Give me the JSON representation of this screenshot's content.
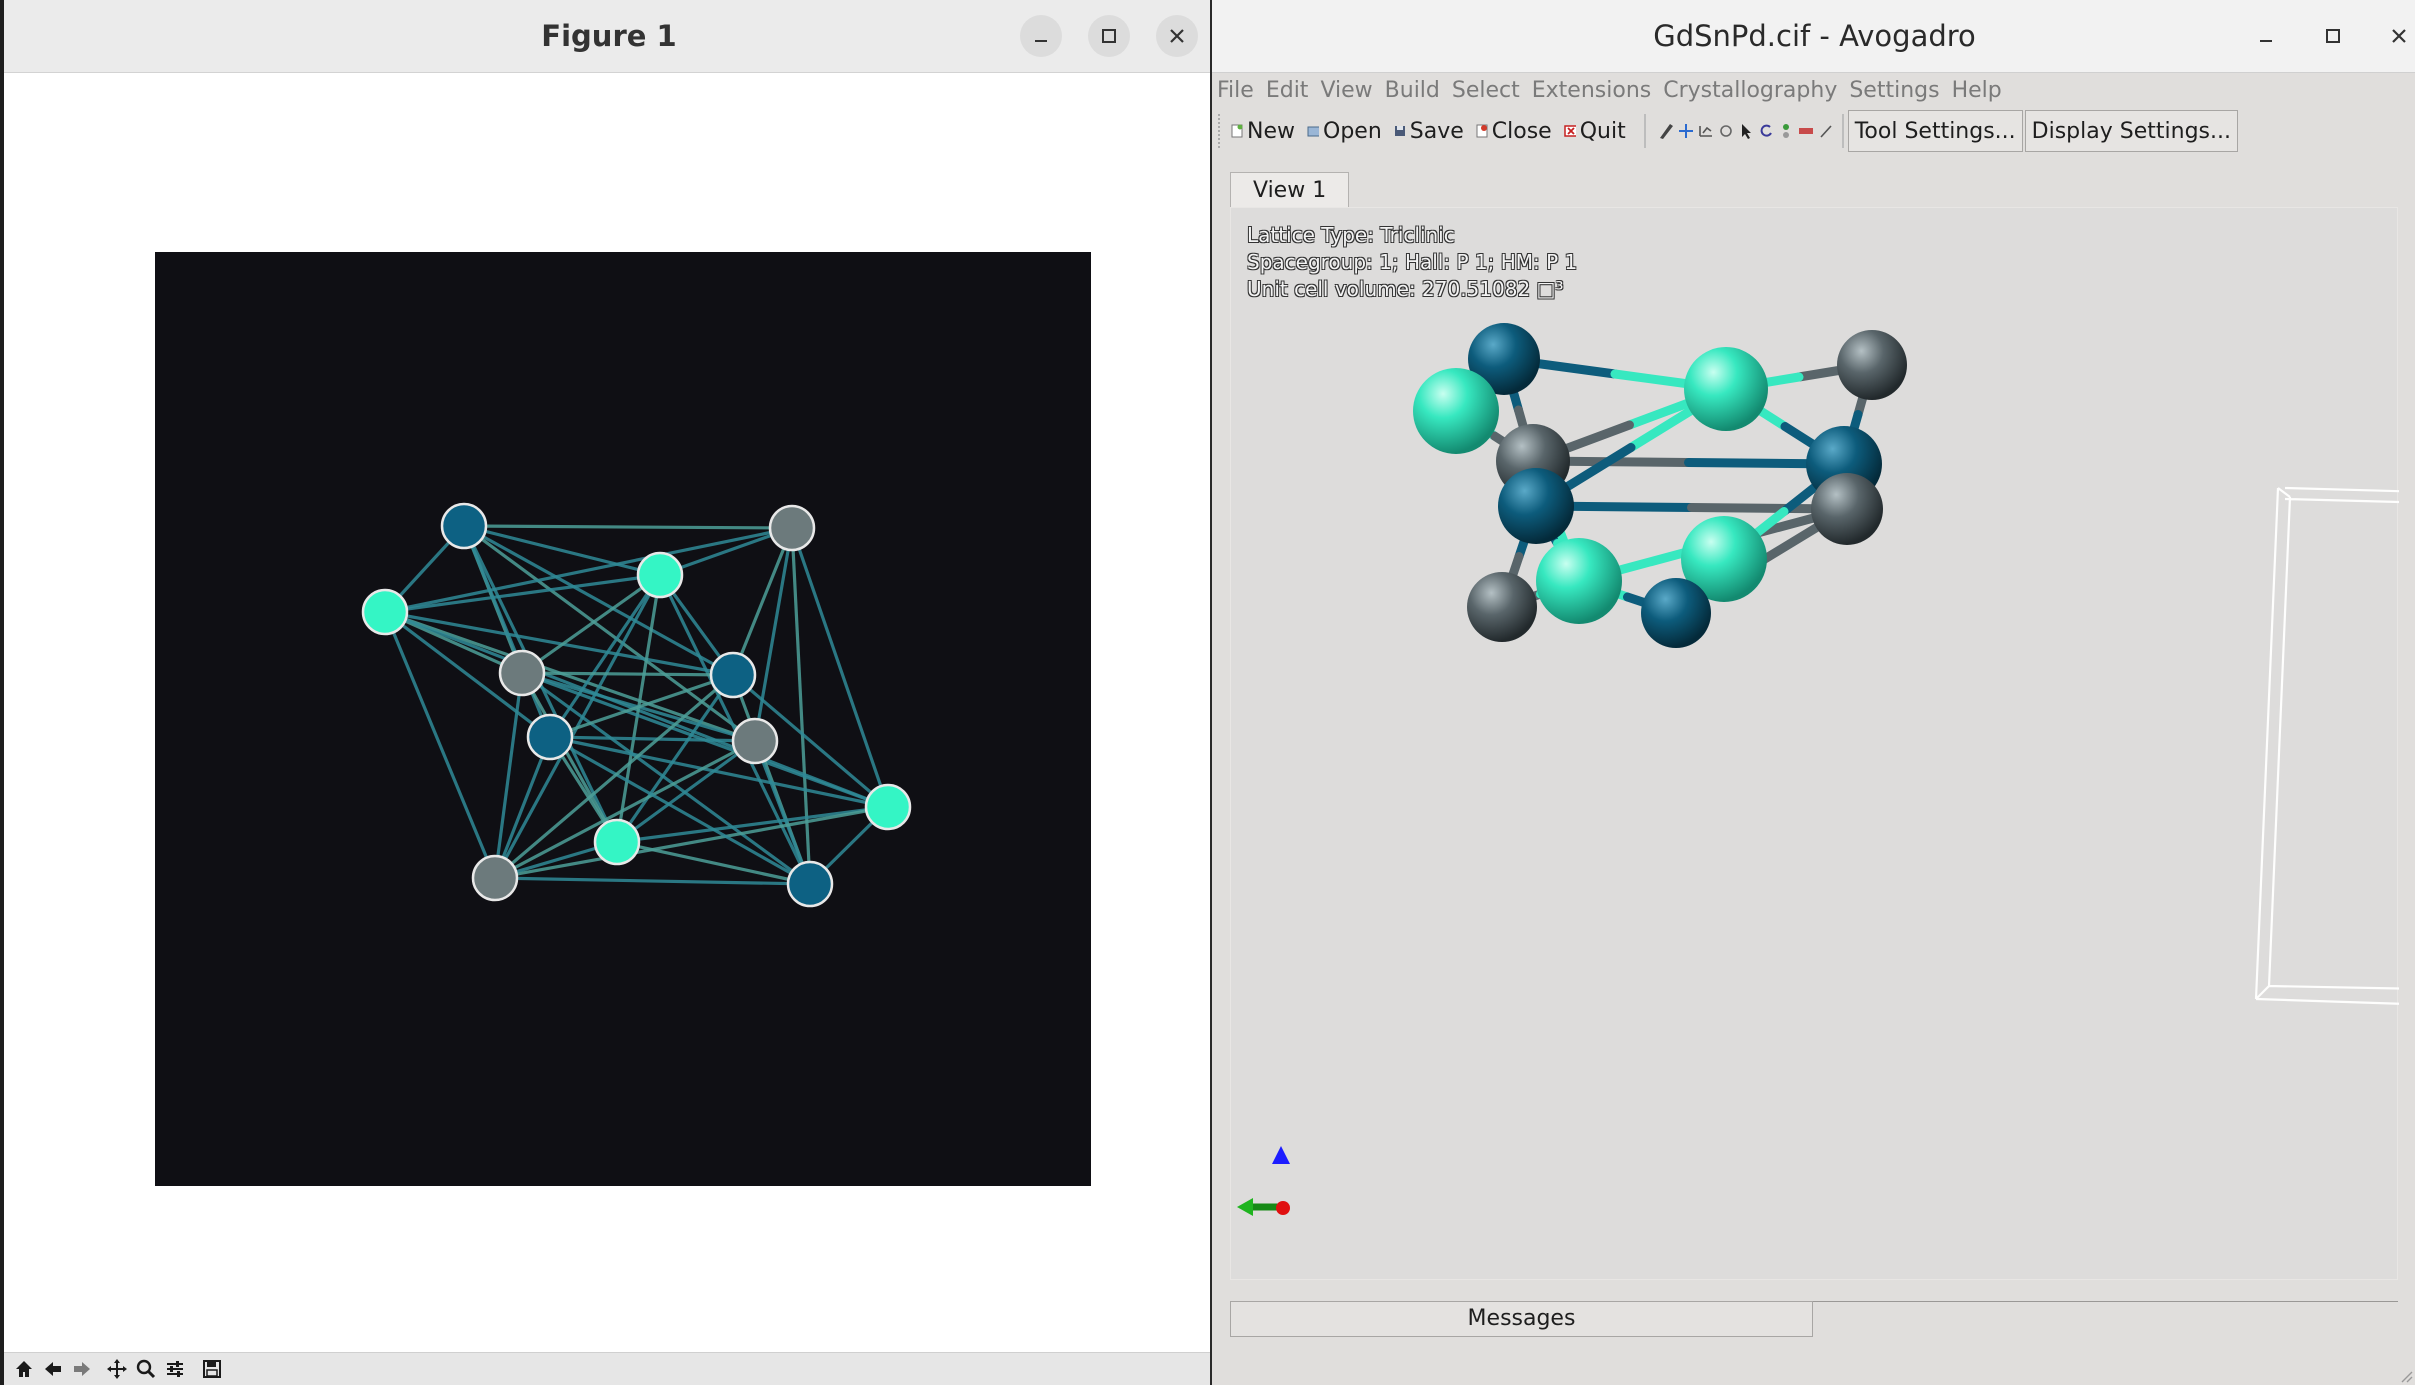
{
  "figure_window": {
    "title": "Figure 1",
    "toolbar_icons": [
      "home-icon",
      "back-icon",
      "forward-icon",
      "pan-icon",
      "zoom-icon",
      "configure-icon",
      "save-icon"
    ],
    "canvas_background": "#0f0f14",
    "node_colors": {
      "teal_dark": "#0d6183",
      "aqua": "#34f5c5",
      "gray": "#6c7a7c"
    },
    "edge_color": "#2f8a96"
  },
  "avogadro_window": {
    "title": "GdSnPd.cif - Avogadro",
    "menu": [
      "File",
      "Edit",
      "View",
      "Build",
      "Select",
      "Extensions",
      "Crystallography",
      "Settings",
      "Help"
    ],
    "toolbar": {
      "new_label": "New",
      "open_label": "Open",
      "save_label": "Save",
      "close_label": "Close",
      "quit_label": "Quit",
      "tool_settings_label": "Tool Settings...",
      "display_settings_label": "Display Settings..."
    },
    "tabs": [
      {
        "label": "View 1"
      }
    ],
    "info": {
      "lattice": "Lattice Type: Triclinic",
      "spacegroup": "Spacegroup: 1; Hall: P 1; HM: P 1",
      "volume": "Unit cell volume: 270.51082 □³"
    },
    "messages_tab": "Messages",
    "atom_colors": {
      "dark_teal": "#0d5c7c",
      "aqua": "#37e8c0",
      "gray": "#59656a"
    }
  }
}
